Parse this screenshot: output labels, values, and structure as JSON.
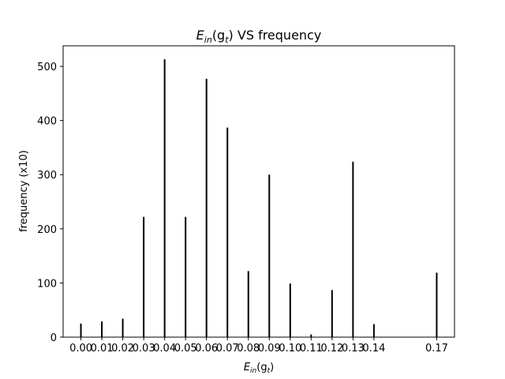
{
  "chart_data": {
    "type": "bar",
    "title": {
      "main": "E",
      "sub1": "in",
      "mid": "(g",
      "sub2": "t",
      "tail": ") VS frequency"
    },
    "xlabel": {
      "main": "E",
      "sub1": "in",
      "mid": "(g",
      "sub2": "t",
      "tail": ")"
    },
    "ylabel": "frequency (x10)",
    "xlim": [
      -0.0085,
      0.1785
    ],
    "ylim": [
      0,
      538
    ],
    "x": [
      0.0,
      0.01,
      0.02,
      0.03,
      0.04,
      0.05,
      0.06,
      0.07,
      0.08,
      0.09,
      0.1,
      0.11,
      0.12,
      0.13,
      0.14,
      0.17
    ],
    "x_tick_labels": [
      "0.00",
      "0.01",
      "0.02",
      "0.03",
      "0.04",
      "0.05",
      "0.06",
      "0.07",
      "0.08",
      "0.09",
      "0.10",
      "0.11",
      "0.12",
      "0.13",
      "0.14",
      "0.17"
    ],
    "values": [
      25,
      29,
      34,
      222,
      513,
      222,
      477,
      387,
      122,
      300,
      99,
      5,
      87,
      324,
      24,
      119
    ],
    "y_ticks": [
      0,
      100,
      200,
      300,
      400,
      500
    ],
    "bar_color": "#000000",
    "grid": false,
    "legend": "none"
  }
}
